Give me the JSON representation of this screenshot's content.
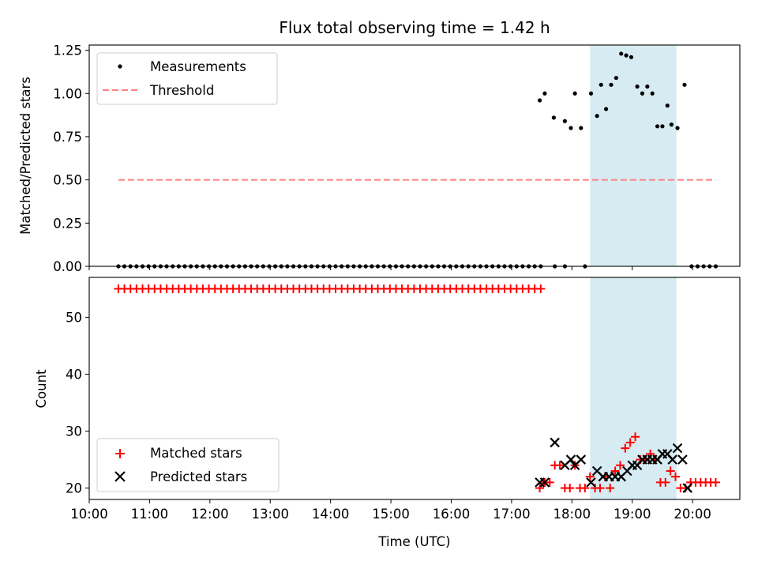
{
  "chart_data": [
    {
      "type": "scatter",
      "title": "Flux total observing time = 1.42 h",
      "xlabel": "",
      "ylabel": "Matched/Predicted stars",
      "xlim": [
        "10:00",
        "20:47"
      ],
      "ylim": [
        0,
        1.28
      ],
      "y_ticks": [
        "0.00",
        "0.25",
        "0.50",
        "0.75",
        "1.00",
        "1.25"
      ],
      "highlight_span": {
        "start": "18:18",
        "end": "19:44",
        "color": "#add8e6"
      },
      "legend": {
        "position": "upper-left"
      },
      "series": [
        {
          "name": "Measurements",
          "style": "dot",
          "color": "#000000",
          "points": [
            [
              "10:29",
              0
            ],
            [
              "10:35",
              0
            ],
            [
              "10:41",
              0
            ],
            [
              "10:47",
              0
            ],
            [
              "10:53",
              0
            ],
            [
              "10:59",
              0
            ],
            [
              "11:05",
              0
            ],
            [
              "11:11",
              0
            ],
            [
              "11:17",
              0
            ],
            [
              "11:23",
              0
            ],
            [
              "11:29",
              0
            ],
            [
              "11:35",
              0
            ],
            [
              "11:41",
              0
            ],
            [
              "11:47",
              0
            ],
            [
              "11:53",
              0
            ],
            [
              "11:59",
              0
            ],
            [
              "12:05",
              0
            ],
            [
              "12:11",
              0
            ],
            [
              "12:17",
              0
            ],
            [
              "12:23",
              0
            ],
            [
              "12:29",
              0
            ],
            [
              "12:35",
              0
            ],
            [
              "12:41",
              0
            ],
            [
              "12:47",
              0
            ],
            [
              "12:53",
              0
            ],
            [
              "12:59",
              0
            ],
            [
              "13:05",
              0
            ],
            [
              "13:11",
              0
            ],
            [
              "13:17",
              0
            ],
            [
              "13:23",
              0
            ],
            [
              "13:29",
              0
            ],
            [
              "13:35",
              0
            ],
            [
              "13:41",
              0
            ],
            [
              "13:47",
              0
            ],
            [
              "13:53",
              0
            ],
            [
              "13:59",
              0
            ],
            [
              "14:05",
              0
            ],
            [
              "14:11",
              0
            ],
            [
              "14:17",
              0
            ],
            [
              "14:23",
              0
            ],
            [
              "14:29",
              0
            ],
            [
              "14:35",
              0
            ],
            [
              "14:41",
              0
            ],
            [
              "14:47",
              0
            ],
            [
              "14:53",
              0
            ],
            [
              "14:59",
              0
            ],
            [
              "15:05",
              0
            ],
            [
              "15:11",
              0
            ],
            [
              "15:17",
              0
            ],
            [
              "15:23",
              0
            ],
            [
              "15:29",
              0
            ],
            [
              "15:35",
              0
            ],
            [
              "15:41",
              0
            ],
            [
              "15:47",
              0
            ],
            [
              "15:53",
              0
            ],
            [
              "15:59",
              0
            ],
            [
              "16:05",
              0
            ],
            [
              "16:11",
              0
            ],
            [
              "16:17",
              0
            ],
            [
              "16:23",
              0
            ],
            [
              "16:29",
              0
            ],
            [
              "16:35",
              0
            ],
            [
              "16:41",
              0
            ],
            [
              "16:47",
              0
            ],
            [
              "16:53",
              0
            ],
            [
              "16:59",
              0
            ],
            [
              "17:05",
              0
            ],
            [
              "17:11",
              0
            ],
            [
              "17:17",
              0
            ],
            [
              "17:23",
              0
            ],
            [
              "17:29",
              0
            ],
            [
              "17:43",
              0
            ],
            [
              "17:53",
              0
            ],
            [
              "18:13",
              0
            ],
            [
              "19:59",
              0
            ],
            [
              "20:05",
              0
            ],
            [
              "20:11",
              0
            ],
            [
              "20:17",
              0
            ],
            [
              "20:23",
              0
            ],
            [
              "17:28",
              0.96
            ],
            [
              "17:33",
              1.0
            ],
            [
              "17:42",
              0.86
            ],
            [
              "17:53",
              0.84
            ],
            [
              "17:59",
              0.8
            ],
            [
              "18:03",
              1.0
            ],
            [
              "18:09",
              0.8
            ],
            [
              "18:19",
              1.0
            ],
            [
              "18:25",
              0.87
            ],
            [
              "18:29",
              1.05
            ],
            [
              "18:34",
              0.91
            ],
            [
              "18:39",
              1.05
            ],
            [
              "18:44",
              1.09
            ],
            [
              "18:49",
              1.23
            ],
            [
              "18:54",
              1.22
            ],
            [
              "18:59",
              1.21
            ],
            [
              "19:05",
              1.04
            ],
            [
              "19:10",
              1.0
            ],
            [
              "19:15",
              1.04
            ],
            [
              "19:20",
              1.0
            ],
            [
              "19:25",
              0.81
            ],
            [
              "19:30",
              0.81
            ],
            [
              "19:35",
              0.93
            ],
            [
              "19:39",
              0.82
            ],
            [
              "19:45",
              0.8
            ],
            [
              "19:52",
              1.05
            ]
          ]
        },
        {
          "name": "Threshold",
          "style": "dashed-line",
          "color": "#ff7f7f",
          "points": [
            [
              "10:29",
              0.5
            ],
            [
              "20:23",
              0.5
            ]
          ]
        }
      ]
    },
    {
      "type": "scatter",
      "title": "",
      "xlabel": "Time (UTC)",
      "ylabel": "Count",
      "xlim": [
        "10:00",
        "20:47"
      ],
      "ylim": [
        18,
        57
      ],
      "y_ticks": [
        "20",
        "30",
        "40",
        "50"
      ],
      "x_ticks": [
        "10:00",
        "11:00",
        "12:00",
        "13:00",
        "14:00",
        "15:00",
        "16:00",
        "17:00",
        "18:00",
        "19:00",
        "20:00"
      ],
      "highlight_span": {
        "start": "18:18",
        "end": "19:44",
        "color": "#add8e6"
      },
      "legend": {
        "position": "lower-left"
      },
      "series": [
        {
          "name": "Matched stars",
          "style": "plus",
          "color": "#ff0000",
          "points": [
            [
              "10:29",
              55
            ],
            [
              "10:35",
              55
            ],
            [
              "10:41",
              55
            ],
            [
              "10:47",
              55
            ],
            [
              "10:53",
              55
            ],
            [
              "10:59",
              55
            ],
            [
              "11:05",
              55
            ],
            [
              "11:11",
              55
            ],
            [
              "11:17",
              55
            ],
            [
              "11:23",
              55
            ],
            [
              "11:29",
              55
            ],
            [
              "11:35",
              55
            ],
            [
              "11:41",
              55
            ],
            [
              "11:47",
              55
            ],
            [
              "11:53",
              55
            ],
            [
              "11:59",
              55
            ],
            [
              "12:05",
              55
            ],
            [
              "12:11",
              55
            ],
            [
              "12:17",
              55
            ],
            [
              "12:23",
              55
            ],
            [
              "12:29",
              55
            ],
            [
              "12:35",
              55
            ],
            [
              "12:41",
              55
            ],
            [
              "12:47",
              55
            ],
            [
              "12:53",
              55
            ],
            [
              "12:59",
              55
            ],
            [
              "13:05",
              55
            ],
            [
              "13:11",
              55
            ],
            [
              "13:17",
              55
            ],
            [
              "13:23",
              55
            ],
            [
              "13:29",
              55
            ],
            [
              "13:35",
              55
            ],
            [
              "13:41",
              55
            ],
            [
              "13:47",
              55
            ],
            [
              "13:53",
              55
            ],
            [
              "13:59",
              55
            ],
            [
              "14:05",
              55
            ],
            [
              "14:11",
              55
            ],
            [
              "14:17",
              55
            ],
            [
              "14:23",
              55
            ],
            [
              "14:29",
              55
            ],
            [
              "14:35",
              55
            ],
            [
              "14:41",
              55
            ],
            [
              "14:47",
              55
            ],
            [
              "14:53",
              55
            ],
            [
              "14:59",
              55
            ],
            [
              "15:05",
              55
            ],
            [
              "15:11",
              55
            ],
            [
              "15:17",
              55
            ],
            [
              "15:23",
              55
            ],
            [
              "15:29",
              55
            ],
            [
              "15:35",
              55
            ],
            [
              "15:41",
              55
            ],
            [
              "15:47",
              55
            ],
            [
              "15:53",
              55
            ],
            [
              "15:59",
              55
            ],
            [
              "16:05",
              55
            ],
            [
              "16:11",
              55
            ],
            [
              "16:17",
              55
            ],
            [
              "16:23",
              55
            ],
            [
              "16:29",
              55
            ],
            [
              "16:35",
              55
            ],
            [
              "16:41",
              55
            ],
            [
              "16:47",
              55
            ],
            [
              "16:53",
              55
            ],
            [
              "16:59",
              55
            ],
            [
              "17:05",
              55
            ],
            [
              "17:11",
              55
            ],
            [
              "17:17",
              55
            ],
            [
              "17:23",
              55
            ],
            [
              "17:29",
              55
            ],
            [
              "17:28",
              20
            ],
            [
              "17:33",
              21
            ],
            [
              "17:38",
              21
            ],
            [
              "17:43",
              24
            ],
            [
              "17:48",
              24
            ],
            [
              "17:53",
              20
            ],
            [
              "17:58",
              20
            ],
            [
              "18:03",
              24
            ],
            [
              "18:08",
              20
            ],
            [
              "18:13",
              20
            ],
            [
              "18:18",
              22
            ],
            [
              "18:23",
              20
            ],
            [
              "18:28",
              20
            ],
            [
              "18:33",
              22
            ],
            [
              "18:38",
              20
            ],
            [
              "18:43",
              23
            ],
            [
              "18:48",
              24
            ],
            [
              "18:53",
              27
            ],
            [
              "18:58",
              28
            ],
            [
              "19:03",
              29
            ],
            [
              "19:08",
              25
            ],
            [
              "19:13",
              25
            ],
            [
              "19:18",
              26
            ],
            [
              "19:23",
              25
            ],
            [
              "19:28",
              21
            ],
            [
              "19:33",
              21
            ],
            [
              "19:38",
              23
            ],
            [
              "19:43",
              22
            ],
            [
              "19:48",
              20
            ],
            [
              "19:53",
              20
            ],
            [
              "19:58",
              21
            ],
            [
              "20:03",
              21
            ],
            [
              "20:08",
              21
            ],
            [
              "20:13",
              21
            ],
            [
              "20:18",
              21
            ],
            [
              "20:23",
              21
            ]
          ]
        },
        {
          "name": "Predicted stars",
          "style": "x",
          "color": "#000000",
          "points": [
            [
              "17:28",
              21
            ],
            [
              "17:33",
              21
            ],
            [
              "17:43",
              28
            ],
            [
              "17:53",
              24
            ],
            [
              "17:59",
              25
            ],
            [
              "18:03",
              24
            ],
            [
              "18:09",
              25
            ],
            [
              "18:19",
              21
            ],
            [
              "18:25",
              23
            ],
            [
              "18:31",
              22
            ],
            [
              "18:37",
              22
            ],
            [
              "18:43",
              22
            ],
            [
              "18:49",
              22
            ],
            [
              "18:55",
              23
            ],
            [
              "19:00",
              24
            ],
            [
              "19:05",
              24
            ],
            [
              "19:10",
              25
            ],
            [
              "19:15",
              25
            ],
            [
              "19:20",
              25
            ],
            [
              "19:25",
              25
            ],
            [
              "19:30",
              26
            ],
            [
              "19:35",
              26
            ],
            [
              "19:40",
              25
            ],
            [
              "19:45",
              27
            ],
            [
              "19:50",
              25
            ],
            [
              "19:55",
              20
            ]
          ]
        }
      ]
    }
  ]
}
